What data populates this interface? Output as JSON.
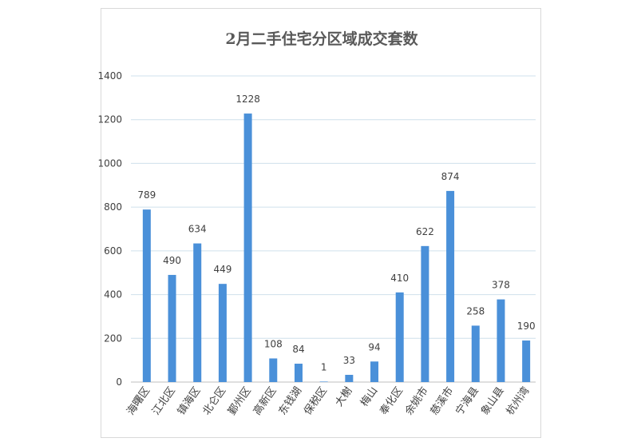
{
  "chart_data": {
    "type": "bar",
    "title": "2月二手住宅分区域成交套数",
    "categories": [
      "海曙区",
      "江北区",
      "镇海区",
      "北仑区",
      "鄞州区",
      "高新区",
      "东钱湖",
      "保税区",
      "大榭",
      "梅山",
      "奉化区",
      "余姚市",
      "慈溪市",
      "宁海县",
      "象山县",
      "杭州湾"
    ],
    "values": [
      789,
      490,
      634,
      449,
      1228,
      108,
      84,
      1,
      33,
      94,
      410,
      622,
      874,
      258,
      378,
      190
    ],
    "ylim": [
      0,
      1400
    ],
    "yticks": [
      0,
      200,
      400,
      600,
      800,
      1000,
      1200,
      1400
    ],
    "grid": true,
    "bar_color": "#4a90d9",
    "grid_color": "#cfe0ec",
    "xlabel": "",
    "ylabel": ""
  }
}
